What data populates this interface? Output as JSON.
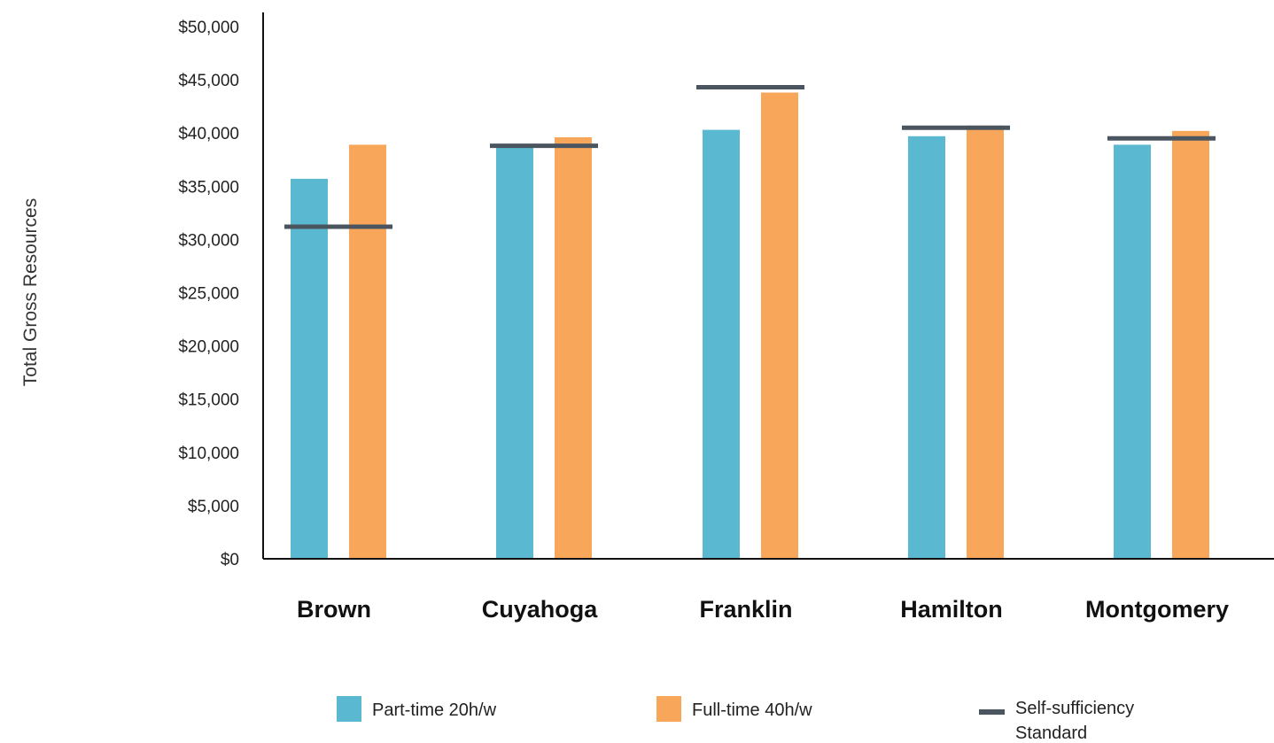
{
  "chart_data": {
    "type": "bar",
    "title": "",
    "xlabel": "",
    "ylabel": "Total Gross Resources",
    "ylim": [
      0,
      50000
    ],
    "yticks": [
      "$0",
      "$5,000",
      "$10,000",
      "$15,000",
      "$20,000",
      "$25,000",
      "$30,000",
      "$35,000",
      "$40,000",
      "$45,000",
      "$50,000"
    ],
    "categories": [
      "Brown",
      "Cuyahoga",
      "Franklin",
      "Hamilton",
      "Montgomery"
    ],
    "series": [
      {
        "name": "Part-time 20h/w",
        "kind": "bar",
        "color": "#5bb8d1",
        "values": [
          35700,
          38800,
          40300,
          39700,
          38900
        ]
      },
      {
        "name": "Full-time 40h/w",
        "kind": "bar",
        "color": "#f8a75a",
        "values": [
          38900,
          39600,
          43800,
          40700,
          40200
        ]
      },
      {
        "name": "Self-sufficiency Standard",
        "kind": "marker",
        "color": "#4a5560",
        "values": [
          31200,
          38800,
          44300,
          40500,
          39500
        ]
      }
    ],
    "legend": {
      "position": "bottom",
      "entries": [
        {
          "label": "Part-time 20h/w",
          "lines": [
            "Part-time 20h/w"
          ]
        },
        {
          "label": "Full-time 40h/w",
          "lines": [
            "Full-time 40h/w"
          ]
        },
        {
          "label": "Self-sufficiency Standard",
          "lines": [
            "Self-sufficiency",
            "Standard"
          ]
        }
      ]
    },
    "grid": false
  }
}
